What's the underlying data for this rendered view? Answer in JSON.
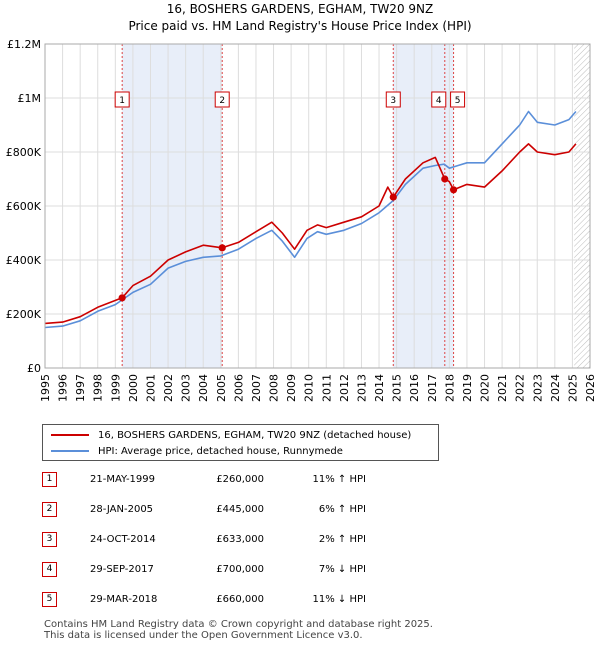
{
  "chart_data": {
    "type": "line",
    "title": "16, BOSHERS GARDENS, EGHAM, TW20 9NZ",
    "subtitle": "Price paid vs. HM Land Registry's House Price Index (HPI)",
    "xlim": [
      1995,
      2026
    ],
    "ylim": [
      0,
      1200000
    ],
    "y_ticks": [
      0,
      200000,
      400000,
      600000,
      800000,
      1000000,
      1200000
    ],
    "y_tick_labels": [
      "£0",
      "£200K",
      "£400K",
      "£600K",
      "£800K",
      "£1M",
      "£1.2M"
    ],
    "x_ticks": [
      1995,
      1996,
      1997,
      1998,
      1999,
      2000,
      2001,
      2002,
      2003,
      2004,
      2005,
      2006,
      2007,
      2008,
      2009,
      2010,
      2011,
      2012,
      2013,
      2014,
      2015,
      2016,
      2017,
      2018,
      2019,
      2020,
      2021,
      2022,
      2023,
      2024,
      2025,
      2026
    ],
    "x_tick_labels": [
      "1995",
      "1996",
      "1997",
      "1998",
      "1999",
      "2000",
      "2001",
      "2002",
      "2003",
      "2004",
      "2005",
      "2006",
      "2007",
      "2008",
      "2009",
      "2010",
      "2011",
      "2012",
      "2013",
      "2014",
      "2015",
      "2016",
      "2017",
      "2018",
      "2019",
      "2020",
      "2021",
      "2022",
      "2023",
      "2024",
      "2025",
      "2026"
    ],
    "grid": true,
    "future_region_start": 2025.1,
    "series": [
      {
        "name": "16, BOSHERS GARDENS, EGHAM, TW20 9NZ (detached house)",
        "color": "#cc0000",
        "points": [
          [
            1995.0,
            165000
          ],
          [
            1996.0,
            170000
          ],
          [
            1997.0,
            190000
          ],
          [
            1998.0,
            225000
          ],
          [
            1999.39,
            260000
          ],
          [
            2000.0,
            305000
          ],
          [
            2001.0,
            340000
          ],
          [
            2002.0,
            400000
          ],
          [
            2003.0,
            430000
          ],
          [
            2004.0,
            455000
          ],
          [
            2005.08,
            445000
          ],
          [
            2006.0,
            465000
          ],
          [
            2007.0,
            505000
          ],
          [
            2007.9,
            540000
          ],
          [
            2008.5,
            500000
          ],
          [
            2009.2,
            440000
          ],
          [
            2009.9,
            510000
          ],
          [
            2010.5,
            530000
          ],
          [
            2011.0,
            520000
          ],
          [
            2012.0,
            540000
          ],
          [
            2013.0,
            560000
          ],
          [
            2014.0,
            600000
          ],
          [
            2014.5,
            670000
          ],
          [
            2014.81,
            633000
          ],
          [
            2015.5,
            700000
          ],
          [
            2016.5,
            760000
          ],
          [
            2017.2,
            780000
          ],
          [
            2017.74,
            700000
          ],
          [
            2018.0,
            690000
          ],
          [
            2018.24,
            660000
          ],
          [
            2019.0,
            680000
          ],
          [
            2020.0,
            670000
          ],
          [
            2021.0,
            730000
          ],
          [
            2022.0,
            800000
          ],
          [
            2022.5,
            830000
          ],
          [
            2023.0,
            800000
          ],
          [
            2024.0,
            790000
          ],
          [
            2024.8,
            800000
          ],
          [
            2025.2,
            830000
          ]
        ]
      },
      {
        "name": "HPI: Average price, detached house, Runnymede",
        "color": "#5b8fd9",
        "points": [
          [
            1995.0,
            150000
          ],
          [
            1996.0,
            155000
          ],
          [
            1997.0,
            175000
          ],
          [
            1998.0,
            210000
          ],
          [
            1999.0,
            235000
          ],
          [
            2000.0,
            280000
          ],
          [
            2001.0,
            310000
          ],
          [
            2002.0,
            370000
          ],
          [
            2003.0,
            395000
          ],
          [
            2004.0,
            410000
          ],
          [
            2005.0,
            415000
          ],
          [
            2006.0,
            440000
          ],
          [
            2007.0,
            480000
          ],
          [
            2007.9,
            510000
          ],
          [
            2008.5,
            470000
          ],
          [
            2009.2,
            410000
          ],
          [
            2009.9,
            480000
          ],
          [
            2010.5,
            505000
          ],
          [
            2011.0,
            495000
          ],
          [
            2012.0,
            510000
          ],
          [
            2013.0,
            535000
          ],
          [
            2014.0,
            575000
          ],
          [
            2014.8,
            620000
          ],
          [
            2015.5,
            680000
          ],
          [
            2016.5,
            740000
          ],
          [
            2017.2,
            750000
          ],
          [
            2017.7,
            755000
          ],
          [
            2018.0,
            740000
          ],
          [
            2018.5,
            750000
          ],
          [
            2019.0,
            760000
          ],
          [
            2020.0,
            760000
          ],
          [
            2021.0,
            830000
          ],
          [
            2022.0,
            900000
          ],
          [
            2022.5,
            950000
          ],
          [
            2023.0,
            910000
          ],
          [
            2024.0,
            900000
          ],
          [
            2024.8,
            920000
          ],
          [
            2025.2,
            950000
          ]
        ]
      }
    ],
    "sales": [
      {
        "label": "1",
        "year": 1999.39,
        "price": 260000
      },
      {
        "label": "2",
        "year": 2005.08,
        "price": 445000
      },
      {
        "label": "3",
        "year": 2014.81,
        "price": 633000
      },
      {
        "label": "4",
        "year": 2017.74,
        "price": 700000
      },
      {
        "label": "5",
        "year": 2018.24,
        "price": 660000
      }
    ]
  },
  "legend": {
    "property": "16, BOSHERS GARDENS, EGHAM, TW20 9NZ (detached house)",
    "hpi": "HPI: Average price, detached house, Runnymede"
  },
  "table": [
    {
      "num": "1",
      "date": "21-MAY-1999",
      "price": "£260,000",
      "hpi": "11% ↑ HPI"
    },
    {
      "num": "2",
      "date": "28-JAN-2005",
      "price": "£445,000",
      "hpi": "6% ↑ HPI"
    },
    {
      "num": "3",
      "date": "24-OCT-2014",
      "price": "£633,000",
      "hpi": "2% ↑ HPI"
    },
    {
      "num": "4",
      "date": "29-SEP-2017",
      "price": "£700,000",
      "hpi": "7% ↓ HPI"
    },
    {
      "num": "5",
      "date": "29-MAR-2018",
      "price": "£660,000",
      "hpi": "11% ↓ HPI"
    }
  ],
  "footer": {
    "line1": "Contains HM Land Registry data © Crown copyright and database right 2025.",
    "line2": "This data is licensed under the Open Government Licence v3.0."
  },
  "colors": {
    "property": "#cc0000",
    "hpi": "#5b8fd9",
    "band": "#e8eef9",
    "grid": "#dddddd"
  }
}
